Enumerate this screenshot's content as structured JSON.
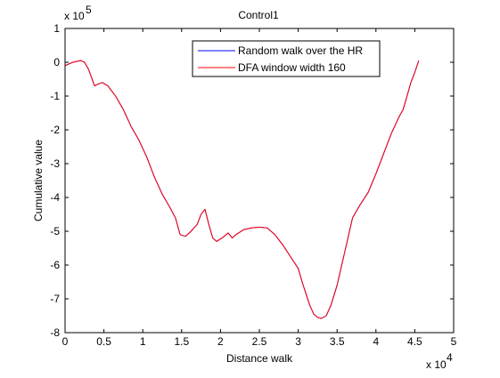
{
  "chart_data": {
    "type": "line",
    "title": "Control1",
    "xlabel": "Distance walk",
    "ylabel": "Cumulative value",
    "x_exponent_label": "x 10",
    "x_exponent_power": "4",
    "y_exponent_label": "x 10",
    "y_exponent_power": "5",
    "xlim": [
      0,
      5
    ],
    "ylim": [
      -8,
      1
    ],
    "x_ticks": [
      0,
      0.5,
      1,
      1.5,
      2,
      2.5,
      3,
      3.5,
      4,
      4.5,
      5
    ],
    "x_tick_labels": [
      "0",
      "0.5",
      "1",
      "1.5",
      "2",
      "2.5",
      "3",
      "3.5",
      "4",
      "4.5",
      "5"
    ],
    "y_ticks": [
      1,
      0,
      -1,
      -2,
      -3,
      -4,
      -5,
      -6,
      -7,
      -8
    ],
    "y_tick_labels": [
      "1",
      "0",
      "-1",
      "-2",
      "-3",
      "-4",
      "-5",
      "-6",
      "-7",
      "-8"
    ],
    "grid": false,
    "legend_position": "top-right",
    "series": [
      {
        "name": "Random walk over the HR",
        "color": "#0000ff",
        "x": [
          0,
          0.1,
          0.2,
          0.25,
          0.3,
          0.38,
          0.42,
          0.48,
          0.55,
          0.65,
          0.75,
          0.85,
          0.95,
          1.05,
          1.15,
          1.25,
          1.35,
          1.42,
          1.48,
          1.55,
          1.62,
          1.7,
          1.75,
          1.8,
          1.85,
          1.9,
          1.95,
          2.02,
          2.1,
          2.15,
          2.2,
          2.3,
          2.4,
          2.5,
          2.6,
          2.7,
          2.8,
          2.9,
          3.0,
          3.05,
          3.1,
          3.15,
          3.2,
          3.25,
          3.3,
          3.36,
          3.42,
          3.5,
          3.6,
          3.7,
          3.8,
          3.9,
          4.0,
          4.1,
          4.2,
          4.3,
          4.35,
          4.4,
          4.45,
          4.5,
          4.55
        ],
        "y": [
          -0.1,
          0.0,
          0.05,
          0.0,
          -0.2,
          -0.7,
          -0.65,
          -0.6,
          -0.7,
          -1.0,
          -1.4,
          -1.9,
          -2.3,
          -2.8,
          -3.4,
          -3.9,
          -4.3,
          -4.6,
          -5.1,
          -5.15,
          -5.0,
          -4.8,
          -4.5,
          -4.35,
          -4.8,
          -5.2,
          -5.3,
          -5.2,
          -5.05,
          -5.2,
          -5.1,
          -4.95,
          -4.9,
          -4.88,
          -4.9,
          -5.1,
          -5.4,
          -5.75,
          -6.1,
          -6.5,
          -6.85,
          -7.2,
          -7.45,
          -7.55,
          -7.58,
          -7.5,
          -7.2,
          -6.6,
          -5.6,
          -4.6,
          -4.2,
          -3.85,
          -3.3,
          -2.7,
          -2.1,
          -1.6,
          -1.4,
          -1.0,
          -0.6,
          -0.3,
          0.05
        ]
      },
      {
        "name": "DFA window width 160",
        "color": "#ff0000",
        "x": [
          0,
          0.1,
          0.2,
          0.25,
          0.3,
          0.38,
          0.42,
          0.48,
          0.55,
          0.65,
          0.75,
          0.85,
          0.95,
          1.05,
          1.15,
          1.25,
          1.35,
          1.42,
          1.48,
          1.55,
          1.62,
          1.7,
          1.75,
          1.8,
          1.85,
          1.9,
          1.95,
          2.02,
          2.1,
          2.15,
          2.2,
          2.3,
          2.4,
          2.5,
          2.6,
          2.7,
          2.8,
          2.9,
          3.0,
          3.05,
          3.1,
          3.15,
          3.2,
          3.25,
          3.3,
          3.36,
          3.42,
          3.5,
          3.6,
          3.7,
          3.8,
          3.9,
          4.0,
          4.1,
          4.2,
          4.3,
          4.35,
          4.4,
          4.45,
          4.5,
          4.55
        ],
        "y": [
          -0.1,
          0.0,
          0.05,
          0.0,
          -0.2,
          -0.7,
          -0.65,
          -0.6,
          -0.7,
          -1.0,
          -1.4,
          -1.9,
          -2.3,
          -2.8,
          -3.4,
          -3.9,
          -4.3,
          -4.6,
          -5.1,
          -5.15,
          -5.0,
          -4.8,
          -4.5,
          -4.35,
          -4.8,
          -5.2,
          -5.3,
          -5.2,
          -5.05,
          -5.2,
          -5.1,
          -4.95,
          -4.9,
          -4.88,
          -4.9,
          -5.1,
          -5.4,
          -5.75,
          -6.1,
          -6.5,
          -6.85,
          -7.2,
          -7.45,
          -7.55,
          -7.58,
          -7.5,
          -7.2,
          -6.6,
          -5.6,
          -4.6,
          -4.2,
          -3.85,
          -3.3,
          -2.7,
          -2.1,
          -1.6,
          -1.4,
          -1.0,
          -0.6,
          -0.3,
          0.05
        ]
      }
    ]
  }
}
